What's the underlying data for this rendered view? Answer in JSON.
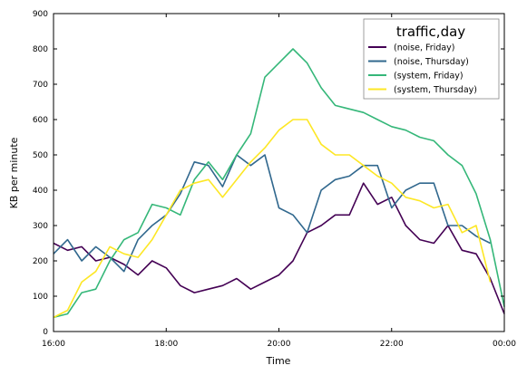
{
  "chart_data": {
    "type": "line",
    "xlabel": "Time",
    "ylabel": "KB per minute",
    "xlim": [
      "16:00",
      "00:00"
    ],
    "ylim": [
      0,
      900
    ],
    "x_ticks": [
      "16:00",
      "18:00",
      "20:00",
      "22:00",
      "00:00"
    ],
    "y_ticks": [
      0,
      100,
      200,
      300,
      400,
      500,
      600,
      700,
      800,
      900
    ],
    "grid": false,
    "legend": {
      "title": "traffic,day",
      "position": "top-right"
    },
    "x": [
      "16:00",
      "16:15",
      "16:30",
      "16:45",
      "17:00",
      "17:15",
      "17:30",
      "17:45",
      "18:00",
      "18:15",
      "18:30",
      "18:45",
      "19:00",
      "19:15",
      "19:30",
      "19:45",
      "20:00",
      "20:15",
      "20:30",
      "20:45",
      "21:00",
      "21:15",
      "21:30",
      "21:45",
      "22:00",
      "22:15",
      "22:30",
      "22:45",
      "23:00",
      "23:15",
      "23:30",
      "23:45",
      "00:00"
    ],
    "series": [
      {
        "name": "(noise, Friday)",
        "color": "#440154",
        "values": [
          250,
          230,
          240,
          200,
          210,
          190,
          160,
          200,
          180,
          130,
          110,
          120,
          130,
          150,
          120,
          140,
          160,
          200,
          280,
          300,
          330,
          330,
          420,
          360,
          380,
          300,
          260,
          250,
          300,
          230,
          220,
          150,
          50
        ]
      },
      {
        "name": "(noise, Thursday)",
        "color": "#31688e",
        "values": [
          220,
          260,
          200,
          240,
          210,
          170,
          260,
          300,
          330,
          390,
          480,
          470,
          410,
          500,
          470,
          500,
          350,
          330,
          280,
          400,
          430,
          440,
          470,
          470,
          350,
          400,
          420,
          420,
          300,
          300,
          270,
          250,
          null
        ]
      },
      {
        "name": "(system, Friday)",
        "color": "#35b779",
        "values": [
          40,
          50,
          110,
          120,
          200,
          260,
          280,
          360,
          350,
          330,
          430,
          480,
          430,
          500,
          560,
          720,
          760,
          800,
          760,
          690,
          640,
          630,
          620,
          600,
          580,
          570,
          550,
          540,
          500,
          470,
          390,
          260,
          70
        ]
      },
      {
        "name": "(system, Thursday)",
        "color": "#fde725",
        "values": [
          40,
          60,
          140,
          170,
          240,
          220,
          210,
          260,
          330,
          400,
          420,
          430,
          380,
          430,
          480,
          520,
          570,
          600,
          600,
          530,
          500,
          500,
          470,
          440,
          420,
          380,
          370,
          350,
          360,
          280,
          300,
          140,
          null
        ]
      }
    ]
  }
}
